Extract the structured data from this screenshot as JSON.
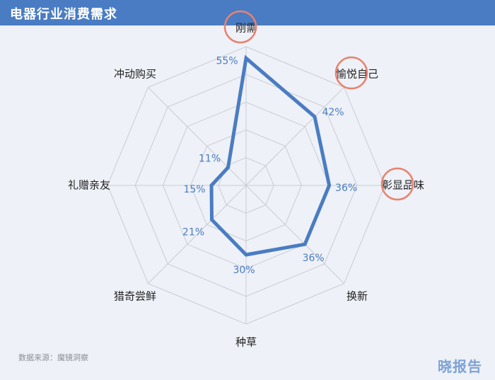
{
  "header": {
    "title": "电器行业消费需求"
  },
  "colors": {
    "header_bg": "#4a7cc3",
    "series": "#4a7cc3",
    "grid": "#c9cdd3",
    "highlight_circle": "#e8826f"
  },
  "chart_data": {
    "type": "radar",
    "title": "电器行业消费需求",
    "categories": [
      "刚需",
      "愉悦自己",
      "彰显品味",
      "换新",
      "种草",
      "猎奇尝鲜",
      "礼赠亲友",
      "冲动购买"
    ],
    "values": [
      55,
      42,
      36,
      36,
      30,
      21,
      15,
      11
    ],
    "value_labels": [
      "55%",
      "42%",
      "36%",
      "36%",
      "30%",
      "21%",
      "15%",
      "11%"
    ],
    "rmax": 60,
    "grid_rings": 5,
    "highlighted": [
      "刚需",
      "愉悦自己",
      "彰显品味"
    ]
  },
  "footer": {
    "source": "数据来源：魔镜洞察",
    "brand": "晓报告"
  }
}
